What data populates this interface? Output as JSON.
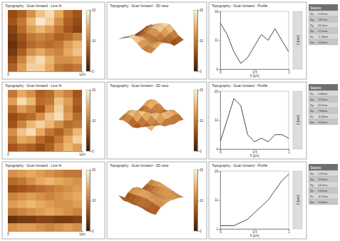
{
  "chart_data": [
    {
      "type": "heatmap",
      "title": "Topography - Scan forward - Line fit",
      "xlim": [
        0,
        1
      ],
      "xticks": [
        0,
        {
          "value": 1,
          "label": "1µm"
        }
      ],
      "cells": [
        [
          6,
          8,
          12,
          16,
          18,
          14,
          9,
          7
        ],
        [
          7,
          10,
          15,
          19,
          17,
          12,
          8,
          6
        ],
        [
          5,
          9,
          13,
          15,
          13,
          10,
          7,
          5
        ],
        [
          4,
          7,
          10,
          11,
          10,
          8,
          9,
          11
        ],
        [
          3,
          6,
          9,
          10,
          9,
          10,
          13,
          15
        ],
        [
          4,
          8,
          12,
          14,
          12,
          11,
          14,
          16
        ],
        [
          6,
          11,
          16,
          18,
          15,
          12,
          12,
          13
        ],
        [
          8,
          13,
          17,
          17,
          14,
          10,
          9,
          10
        ]
      ],
      "colorbar": {
        "range": [
          0,
          20
        ],
        "ticks": [
          0,
          10,
          20
        ]
      }
    },
    {
      "type": "surface",
      "title": "Topography - Scan forward - 3D view",
      "colorbar": {
        "range": [
          0,
          20
        ],
        "ticks": [
          0,
          10,
          20
        ]
      }
    },
    {
      "type": "line",
      "title": "Topography - Scan forward - Profile",
      "x_label": "X [µm]",
      "y_label": "Z [nm]",
      "x": [
        0,
        0.1,
        0.2,
        0.3,
        0.4,
        0.5,
        0.6,
        0.7,
        0.8,
        0.9,
        1
      ],
      "values": [
        14,
        12,
        9,
        7,
        8,
        10,
        12,
        11,
        13,
        11,
        9
      ],
      "xlim": [
        0,
        1
      ],
      "xticks": [
        0,
        0.5,
        1
      ],
      "ylim": [
        6,
        16
      ],
      "yticks": [
        6,
        11,
        16
      ],
      "color": "#333333",
      "grid": false
    },
    {
      "type": "heatmap",
      "title": "Topography - Scan forward - Line fit",
      "xlim": [
        0,
        1
      ],
      "xticks": [
        0,
        {
          "value": 1,
          "label": "1µm"
        }
      ],
      "cells": [
        [
          10,
          14,
          12,
          8,
          9,
          13,
          11,
          7
        ],
        [
          13,
          18,
          15,
          9,
          10,
          16,
          13,
          8
        ],
        [
          9,
          13,
          11,
          7,
          12,
          17,
          12,
          7
        ],
        [
          6,
          8,
          9,
          12,
          16,
          18,
          13,
          9
        ],
        [
          7,
          11,
          15,
          17,
          15,
          12,
          9,
          10
        ],
        [
          12,
          16,
          18,
          14,
          10,
          8,
          11,
          15
        ],
        [
          10,
          14,
          13,
          9,
          7,
          10,
          14,
          17
        ],
        [
          7,
          9,
          8,
          6,
          8,
          12,
          15,
          13
        ]
      ],
      "colorbar": {
        "range": [
          0,
          20
        ],
        "ticks": [
          0,
          10,
          20
        ]
      }
    },
    {
      "type": "surface",
      "title": "Topography - Scan forward - 3D view",
      "colorbar": {
        "range": [
          0,
          20
        ],
        "ticks": [
          0,
          10,
          20
        ]
      }
    },
    {
      "type": "line",
      "title": "Topography - Scan forward - Profile",
      "x_label": "X [µm]",
      "y_label": "Z [nm]",
      "x": [
        0,
        0.1,
        0.2,
        0.3,
        0.4,
        0.5,
        0.6,
        0.7,
        0.8,
        0.9,
        1
      ],
      "values": [
        6,
        12,
        18,
        16,
        8,
        6,
        7,
        6,
        8,
        8,
        7
      ],
      "xlim": [
        0,
        1
      ],
      "xticks": [
        0,
        0.5,
        1
      ],
      "ylim": [
        4,
        20
      ],
      "yticks": [
        4,
        12,
        20
      ],
      "color": "#333333",
      "grid": false
    },
    {
      "type": "heatmap",
      "title": "Topography - Scan forward - Line fit",
      "xlim": [
        0,
        1
      ],
      "xticks": [
        0,
        {
          "value": 1,
          "label": "1µm"
        }
      ],
      "cells": [
        [
          12,
          13,
          14,
          13,
          12,
          11,
          10,
          10
        ],
        [
          9,
          10,
          12,
          14,
          15,
          14,
          13,
          12
        ],
        [
          6,
          7,
          8,
          9,
          10,
          11,
          12,
          13
        ],
        [
          11,
          12,
          13,
          12,
          11,
          12,
          13,
          14
        ],
        [
          13,
          14,
          15,
          14,
          13,
          12,
          12,
          13
        ],
        [
          10,
          11,
          12,
          13,
          14,
          13,
          12,
          11
        ],
        [
          3,
          4,
          4,
          5,
          5,
          4,
          4,
          5
        ],
        [
          12,
          13,
          13,
          12,
          11,
          12,
          13,
          12
        ]
      ],
      "colorbar": {
        "range": [
          0,
          20
        ],
        "ticks": [
          0,
          10,
          20
        ]
      }
    },
    {
      "type": "surface",
      "title": "Topography - Scan forward - 3D view",
      "colorbar": {
        "range": [
          0,
          20
        ],
        "ticks": [
          0,
          10,
          20
        ]
      }
    },
    {
      "type": "line",
      "title": "Topography - Scan forward - Profile",
      "x_label": "X [µm]",
      "y_label": "Z [nm]",
      "x": [
        0,
        0.1,
        0.2,
        0.3,
        0.4,
        0.5,
        0.6,
        0.7,
        0.8,
        0.9,
        1
      ],
      "values": [
        3,
        3,
        3,
        4,
        5,
        7,
        9,
        11,
        14,
        17,
        19
      ],
      "xlim": [
        0,
        1
      ],
      "xticks": [
        0,
        0.5,
        1
      ],
      "ylim": [
        2,
        20
      ],
      "yticks": [
        2,
        11,
        20
      ],
      "color": "#333333",
      "grid": false
    }
  ],
  "tables": [
    {
      "title": "Statistic",
      "rows": [
        [
          "Sa",
          "2.31nm"
        ],
        [
          "Sq",
          "2.87nm"
        ],
        [
          "Sy",
          "16.4nm"
        ],
        [
          "Sp",
          "9.12nm"
        ],
        [
          "Sv",
          "-7.28nm"
        ],
        [
          "Sm",
          "0.00nm"
        ]
      ]
    },
    {
      "title": "Statistic",
      "rows": [
        [
          "Sa",
          "2.68nm"
        ],
        [
          "Sq",
          "3.25nm"
        ],
        [
          "Sy",
          "15.9nm"
        ],
        [
          "Sp",
          "7.84nm"
        ],
        [
          "Sv",
          "-8.06nm"
        ],
        [
          "Sm",
          "0.00nm"
        ]
      ]
    },
    {
      "title": "Statistic",
      "rows": [
        [
          "Sa",
          "1.97nm"
        ],
        [
          "Sq",
          "2.54nm"
        ],
        [
          "Sy",
          "14.2nm"
        ],
        [
          "Sp",
          "5.61nm"
        ],
        [
          "Sv",
          "-8.59nm"
        ],
        [
          "Sm",
          "0.00nm"
        ]
      ]
    }
  ]
}
